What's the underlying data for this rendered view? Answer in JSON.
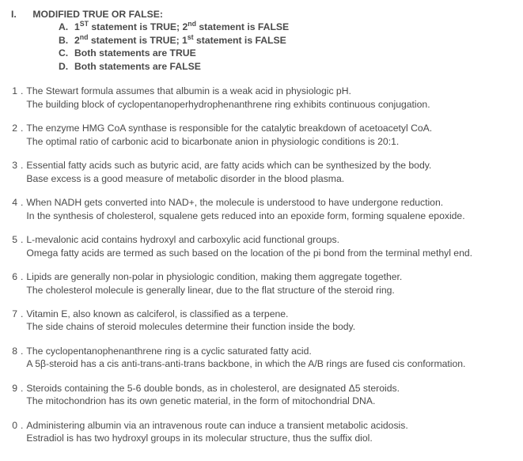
{
  "section": {
    "roman": "I.",
    "title": "MODIFIED TRUE OR FALSE:",
    "options": {
      "A": {
        "letter": "A.",
        "pre1": "1",
        "sup1": "ST",
        "mid1": " statement is TRUE; 2",
        "sup2": "nd",
        "post": " statement is FALSE"
      },
      "B": {
        "letter": "B.",
        "pre1": "2",
        "sup1": "nd",
        "mid1": " statement is TRUE; 1",
        "sup2": "st",
        "post": " statement is FALSE"
      },
      "C": {
        "letter": "C.",
        "text": "Both statements are TRUE"
      },
      "D": {
        "letter": "D.",
        "text": "Both statements are FALSE"
      }
    }
  },
  "questions": [
    {
      "num": "1",
      "s1": "The Stewart formula assumes that albumin is a weak acid in physiologic pH.",
      "s2": "The building block of cyclopentanoperhydrophenanthrene ring exhibits continuous conjugation."
    },
    {
      "num": "2",
      "s1": "The enzyme HMG CoA synthase is responsible for the catalytic breakdown of acetoacetyl CoA.",
      "s2": "The optimal ratio of carbonic acid to bicarbonate anion in physiologic conditions is 20:1."
    },
    {
      "num": "3",
      "s1": "Essential fatty acids such as butyric acid, are fatty acids which can be synthesized by the body.",
      "s2": "Base excess is a good measure of metabolic disorder in the blood plasma."
    },
    {
      "num": "4",
      "s1": "When NADH gets converted into NAD+, the molecule is understood to have undergone reduction.",
      "s2": "In the synthesis of cholesterol, squalene gets reduced into an epoxide form, forming squalene epoxide."
    },
    {
      "num": "5",
      "s1": "L-mevalonic acid contains hydroxyl and carboxylic acid functional groups.",
      "s2": "Omega fatty acids are termed as such based on the location of the pi bond from the terminal methyl end."
    },
    {
      "num": "6",
      "s1": "Lipids are generally non-polar in physiologic condition, making them aggregate together.",
      "s2": "The cholesterol molecule is generally linear, due to the flat structure of the steroid ring."
    },
    {
      "num": "7",
      "s1": "Vitamin E, also known as calciferol, is classified as a terpene.",
      "s2": "The side chains of steroid molecules determine their function inside the body."
    },
    {
      "num": "8",
      "s1": "The cyclopentanophenanthrene ring is a cyclic saturated fatty acid.",
      "s2": "A 5β-steroid has a cis anti-trans-anti-trans backbone, in which the A/B rings are fused cis conformation."
    },
    {
      "num": "9",
      "s1": "Steroids containing the 5-6 double bonds, as in cholesterol, are designated Δ5 steroids.",
      "s2": "The mitochondrion has its own genetic material, in the form of mitochondrial DNA."
    },
    {
      "num": "0",
      "s1": "Administering albumin via an intravenous route can induce a transient metabolic acidosis.",
      "s2": "Estradiol is has two hydroxyl groups in its molecular structure, thus the suffix diol."
    }
  ]
}
